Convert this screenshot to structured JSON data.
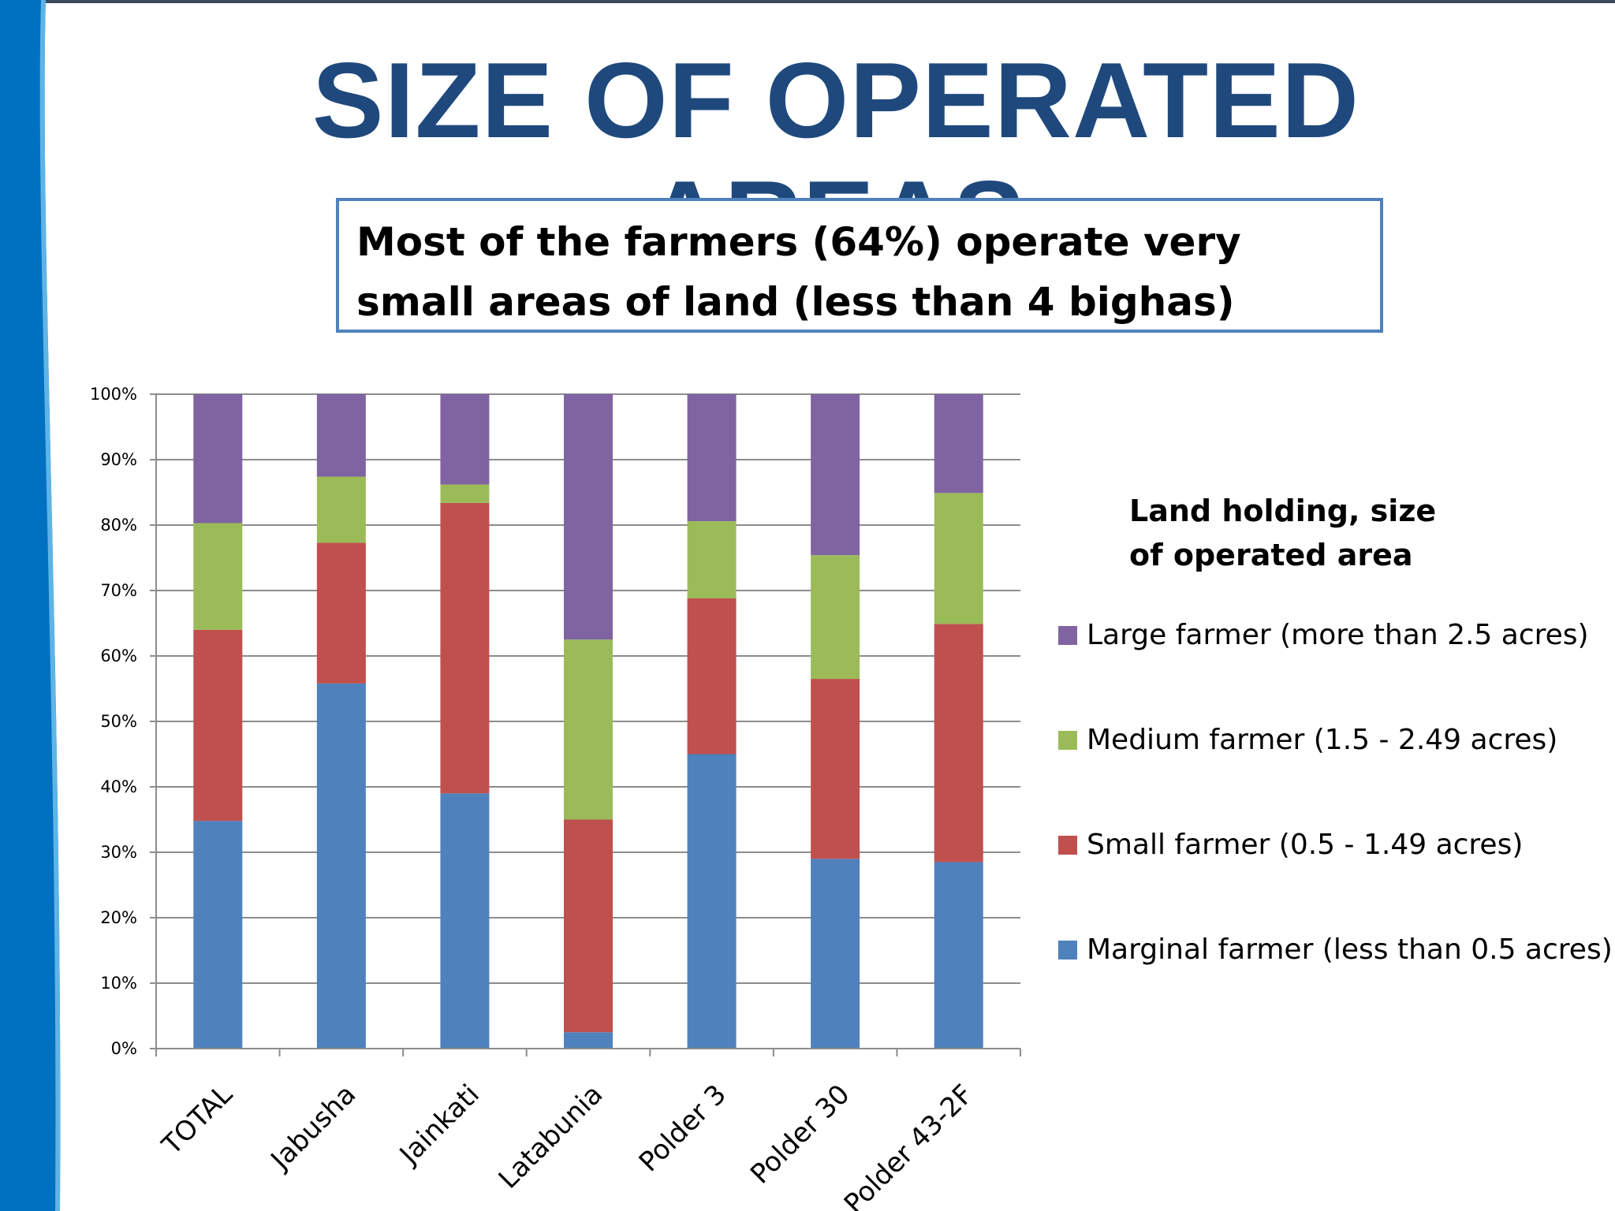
{
  "slide": {
    "title": "SIZE OF OPERATED AREAS",
    "callout": "Most of the farmers (64%) operate very small areas of land (less than 4 bighas)",
    "title_color": "#1f497d",
    "accent_color": "#0070c0"
  },
  "chart_data": {
    "type": "bar",
    "stacked": true,
    "percent": true,
    "categories": [
      "TOTAL",
      "Jabusha",
      "Jainkati",
      "Latabunia",
      "Polder 3",
      "Polder 30",
      "Polder 43-2F"
    ],
    "legend_title": "Land holding, size of operated area",
    "legend_position": "right",
    "series": [
      {
        "name": "Marginal farmer (less than 0.5 acres)",
        "color": "#4f81bd",
        "values": [
          34.8,
          55.8,
          39.0,
          2.5,
          45.0,
          29.0,
          28.5
        ]
      },
      {
        "name": "Small farmer (0.5 - 1.49 acres)",
        "color": "#c0504d",
        "values": [
          29.2,
          21.5,
          44.4,
          32.5,
          23.8,
          27.5,
          36.4
        ]
      },
      {
        "name": "Medium farmer (1.5 - 2.49 acres)",
        "color": "#9bbb59",
        "values": [
          16.3,
          10.1,
          2.8,
          27.5,
          11.8,
          18.9,
          20.0
        ]
      },
      {
        "name": "Large farmer (more than 2.5 acres)",
        "color": "#8064a2",
        "values": [
          19.7,
          12.6,
          13.8,
          37.5,
          19.4,
          24.6,
          15.1
        ]
      }
    ],
    "ylim": [
      0,
      100
    ],
    "yticks": [
      "0%",
      "10%",
      "20%",
      "30%",
      "40%",
      "50%",
      "60%",
      "70%",
      "80%",
      "90%",
      "100%"
    ],
    "grid": true,
    "xlabel": "",
    "ylabel": ""
  }
}
